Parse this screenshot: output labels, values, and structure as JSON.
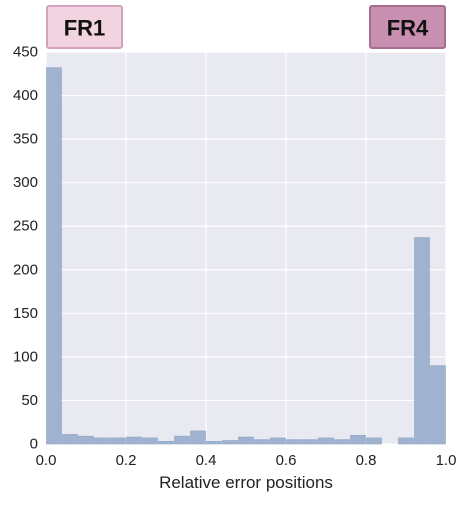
{
  "chart_data": {
    "type": "bar",
    "title": "",
    "xlabel": "Relative error positions",
    "ylabel": "",
    "xlim": [
      0.0,
      1.0
    ],
    "ylim": [
      0,
      450
    ],
    "xticks": [
      "0.0",
      "0.2",
      "0.4",
      "0.6",
      "0.8",
      "1.0"
    ],
    "yticks": [
      "0",
      "50",
      "100",
      "150",
      "200",
      "250",
      "300",
      "350",
      "400",
      "450"
    ],
    "grid": true,
    "bin_width": 0.04,
    "x": [
      0.0,
      0.04,
      0.08,
      0.12,
      0.16,
      0.2,
      0.24,
      0.28,
      0.32,
      0.36,
      0.4,
      0.44,
      0.48,
      0.52,
      0.56,
      0.6,
      0.64,
      0.68,
      0.72,
      0.76,
      0.8,
      0.84,
      0.88,
      0.92,
      0.96
    ],
    "values": [
      432,
      11,
      9,
      7,
      7,
      8,
      7,
      3,
      9,
      15,
      3,
      4,
      8,
      5,
      7,
      5,
      5,
      7,
      5,
      10,
      7,
      0,
      7,
      237,
      90
    ],
    "bar_color": "#9fb3d1",
    "background_color": "#e9e9f2",
    "annotations": [
      {
        "label": "FR1",
        "x": 0.0,
        "fill": "#f2d3e0",
        "stroke": "#d4a3bb"
      },
      {
        "label": "FR4",
        "x": 1.0,
        "fill": "#c98fb1",
        "stroke": "#a86c90"
      }
    ]
  }
}
